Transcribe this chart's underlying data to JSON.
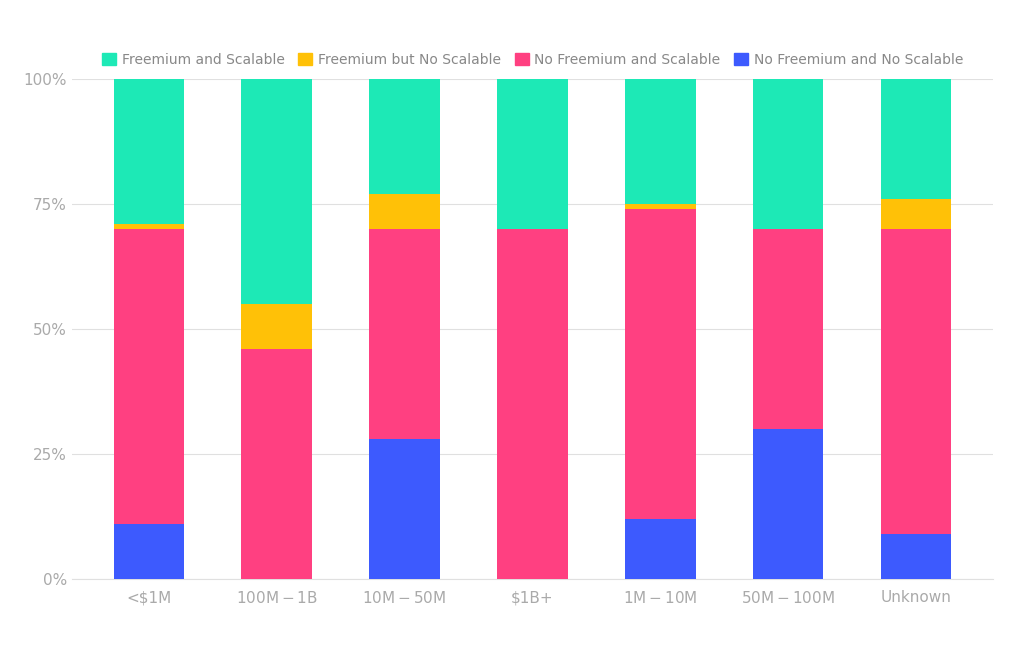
{
  "categories": [
    "<$1M",
    "$100M-$1B",
    "$10M-$50M",
    "$1B+",
    "$1M-$10M",
    "$50M-$100M",
    "Unknown"
  ],
  "series": {
    "No Freemium and No Scalable": [
      0.11,
      0.0,
      0.28,
      0.0,
      0.12,
      0.3,
      0.09
    ],
    "No Freemium and Scalable": [
      0.59,
      0.46,
      0.42,
      0.7,
      0.62,
      0.4,
      0.61
    ],
    "Freemium but No Scalable": [
      0.01,
      0.09,
      0.07,
      0.0,
      0.01,
      0.0,
      0.06
    ],
    "Freemium and Scalable": [
      0.29,
      0.45,
      0.23,
      0.3,
      0.25,
      0.3,
      0.24
    ]
  },
  "colors": {
    "No Freemium and No Scalable": "#3D5AFE",
    "No Freemium and Scalable": "#FF4081",
    "Freemium but No Scalable": "#FFC107",
    "Freemium and Scalable": "#1DE9B6"
  },
  "legend_order": [
    "Freemium and Scalable",
    "Freemium but No Scalable",
    "No Freemium and Scalable",
    "No Freemium and No Scalable"
  ],
  "ylim": [
    0,
    1
  ],
  "yticks": [
    0,
    0.25,
    0.5,
    0.75,
    1.0
  ],
  "ytick_labels": [
    "0%",
    "25%",
    "50%",
    "75%",
    "100%"
  ],
  "background_color": "#FFFFFF",
  "grid_color": "#E0E0E0",
  "bar_width": 0.55,
  "legend_fontsize": 10,
  "tick_fontsize": 11,
  "tick_color": "#AAAAAA",
  "spine_color": "#CCCCCC"
}
